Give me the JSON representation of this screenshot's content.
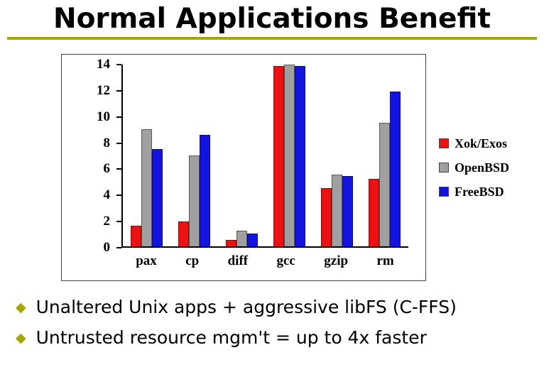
{
  "slide": {
    "title": "Normal Applications Benefit",
    "accent_color": "#a6a600",
    "bullets": [
      "Unaltered Unix apps + aggressive libFS (C-FFS)",
      "Untrusted resource mgm't = up to 4x faster"
    ],
    "bullet_glyph": "◆"
  },
  "chart_data": {
    "type": "bar",
    "title": "",
    "xlabel": "",
    "ylabel": "",
    "categories": [
      "pax",
      "cp",
      "diff",
      "gcc",
      "gzip",
      "rm"
    ],
    "series": [
      {
        "name": "Xok/Exos",
        "color": "#ee1111",
        "values": [
          1.6,
          1.9,
          0.5,
          13.9,
          4.5,
          5.2
        ]
      },
      {
        "name": "OpenBSD",
        "color": "#a0a0a0",
        "values": [
          9.0,
          7.0,
          1.2,
          14.0,
          5.5,
          9.5
        ]
      },
      {
        "name": "FreeBSD",
        "color": "#1414e0",
        "values": [
          7.5,
          8.6,
          1.0,
          13.9,
          5.4,
          11.9
        ]
      }
    ],
    "ylim": [
      0,
      14
    ],
    "yticks": [
      0,
      2,
      4,
      6,
      8,
      10,
      12,
      14
    ],
    "grid": false,
    "legend_position": "right"
  }
}
